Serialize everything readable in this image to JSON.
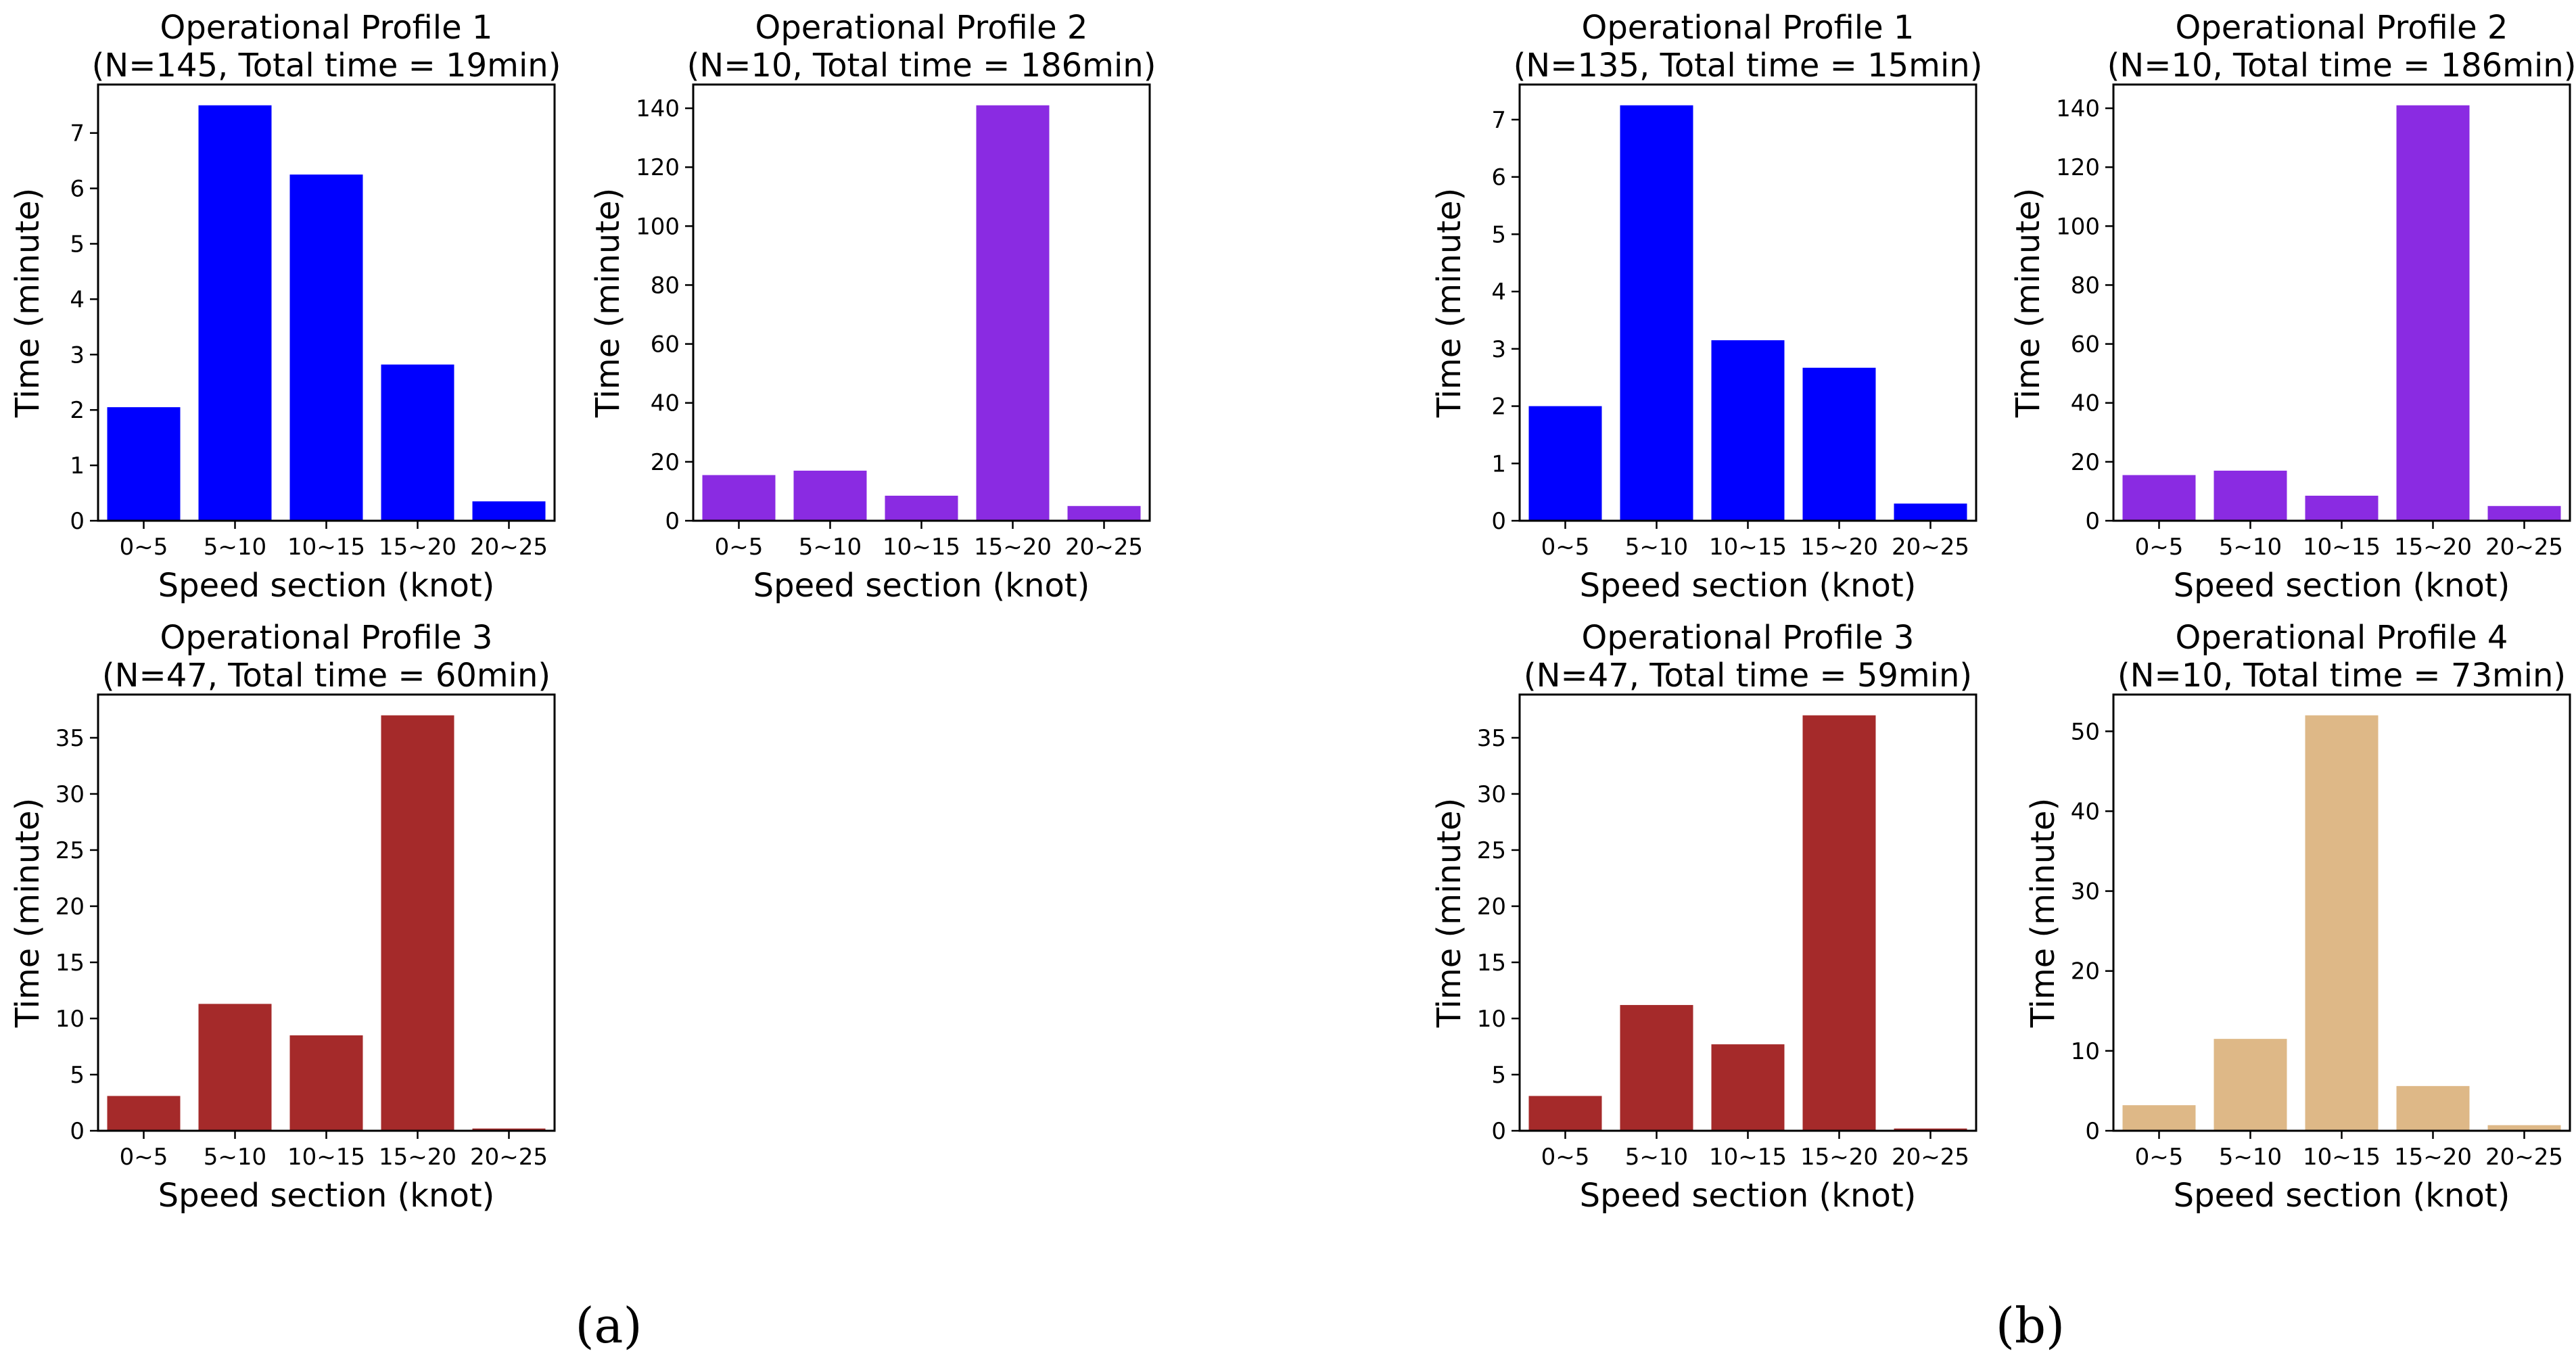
{
  "chart_data": [
    {
      "type": "bar",
      "group": "a",
      "title_line1": "Operational Profile 1",
      "title_line2": "(N=145, Total time = 19min)",
      "categories": [
        "0~5",
        "5~10",
        "10~15",
        "15~20",
        "20~25"
      ],
      "values": [
        2.05,
        7.5,
        6.25,
        2.82,
        0.35
      ],
      "color": "#0000ff",
      "xlabel": "Speed section (knot)",
      "ylabel": "Time (minute)",
      "ylim": [
        0,
        7.875
      ],
      "yticks": [
        0,
        1,
        2,
        3,
        4,
        5,
        6,
        7
      ],
      "grid": false,
      "legend": "none"
    },
    {
      "type": "bar",
      "group": "a",
      "title_line1": "Operational Profile 2",
      "title_line2": "(N=10, Total time = 186min)",
      "categories": [
        "0~5",
        "5~10",
        "10~15",
        "15~20",
        "20~25"
      ],
      "values": [
        15.5,
        17.0,
        8.5,
        141.0,
        5.0
      ],
      "color": "#8a2be2",
      "xlabel": "Speed section (knot)",
      "ylabel": "Time (minute)",
      "ylim": [
        0,
        148.05
      ],
      "yticks": [
        0,
        20,
        40,
        60,
        80,
        100,
        120,
        140
      ],
      "grid": false,
      "legend": "none"
    },
    {
      "type": "bar",
      "group": "a",
      "title_line1": "Operational Profile 3",
      "title_line2": "(N=47, Total time = 60min)",
      "categories": [
        "0~5",
        "5~10",
        "10~15",
        "15~20",
        "20~25"
      ],
      "values": [
        3.1,
        11.3,
        8.5,
        37.0,
        0.2
      ],
      "color": "#a52a2a",
      "xlabel": "Speed section (knot)",
      "ylabel": "Time (minute)",
      "ylim": [
        0,
        38.85
      ],
      "yticks": [
        0,
        5,
        10,
        15,
        20,
        25,
        30,
        35
      ],
      "grid": false,
      "legend": "none"
    },
    {
      "type": "bar",
      "group": "b",
      "title_line1": "Operational Profile 1",
      "title_line2": "(N=135, Total time = 15min)",
      "categories": [
        "0~5",
        "5~10",
        "10~15",
        "15~20",
        "20~25"
      ],
      "values": [
        2.0,
        7.25,
        3.15,
        2.67,
        0.3
      ],
      "color": "#0000ff",
      "xlabel": "Speed section (knot)",
      "ylabel": "Time (minute)",
      "ylim": [
        0,
        7.6125
      ],
      "yticks": [
        0,
        1,
        2,
        3,
        4,
        5,
        6,
        7
      ],
      "grid": false,
      "legend": "none"
    },
    {
      "type": "bar",
      "group": "b",
      "title_line1": "Operational Profile 2",
      "title_line2": "(N=10, Total time = 186min)",
      "categories": [
        "0~5",
        "5~10",
        "10~15",
        "15~20",
        "20~25"
      ],
      "values": [
        15.5,
        17.0,
        8.5,
        141.0,
        5.0
      ],
      "color": "#8a2be2",
      "xlabel": "Speed section (knot)",
      "ylabel": "Time (minute)",
      "ylim": [
        0,
        148.05
      ],
      "yticks": [
        0,
        20,
        40,
        60,
        80,
        100,
        120,
        140
      ],
      "grid": false,
      "legend": "none"
    },
    {
      "type": "bar",
      "group": "b",
      "title_line1": "Operational Profile 3",
      "title_line2": "(N=47, Total time = 59min)",
      "categories": [
        "0~5",
        "5~10",
        "10~15",
        "15~20",
        "20~25"
      ],
      "values": [
        3.1,
        11.2,
        7.7,
        37.0,
        0.2
      ],
      "color": "#a52a2a",
      "xlabel": "Speed section (knot)",
      "ylabel": "Time (minute)",
      "ylim": [
        0,
        38.85
      ],
      "yticks": [
        0,
        5,
        10,
        15,
        20,
        25,
        30,
        35
      ],
      "grid": false,
      "legend": "none"
    },
    {
      "type": "bar",
      "group": "b",
      "title_line1": "Operational Profile 4",
      "title_line2": "(N=10, Total time = 73min)",
      "categories": [
        "0~5",
        "5~10",
        "10~15",
        "15~20",
        "20~25"
      ],
      "values": [
        3.2,
        11.5,
        52.0,
        5.6,
        0.7
      ],
      "color": "#deb887",
      "xlabel": "Speed section (knot)",
      "ylabel": "Time (minute)",
      "ylim": [
        0,
        54.6
      ],
      "yticks": [
        0,
        10,
        20,
        30,
        40,
        50
      ],
      "grid": false,
      "legend": "none"
    }
  ],
  "panel_labels": {
    "a": "(a)",
    "b": "(b)"
  }
}
